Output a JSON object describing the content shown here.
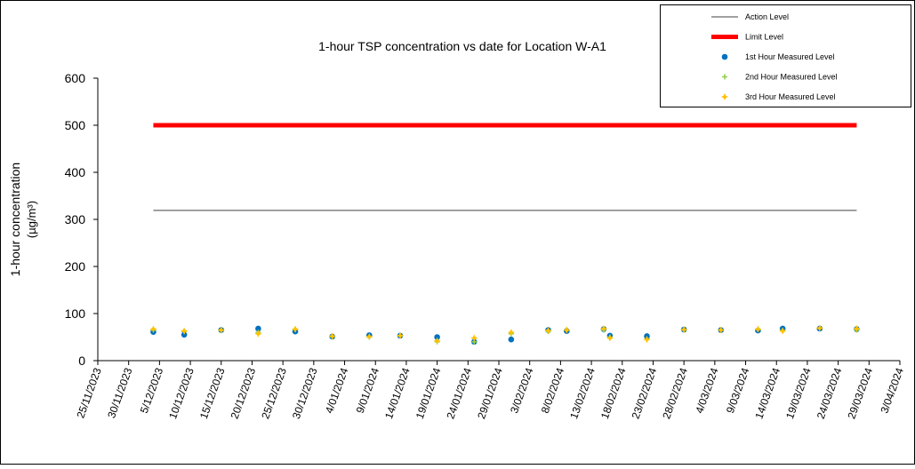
{
  "chart_data": {
    "type": "scatter",
    "title": "1-hour TSP concentration vs date for Location W-A1",
    "ylabel": [
      "1-hour concentration",
      "(µg/m³)"
    ],
    "x": [
      "4/12/2023",
      "9/12/2023",
      "15/12/2023",
      "21/12/2023",
      "27/12/2023",
      "2/01/2024",
      "8/01/2024",
      "13/01/2024",
      "19/01/2024",
      "25/01/2024",
      "31/01/2024",
      "6/02/2024",
      "9/02/2024",
      "15/02/2024",
      "16/02/2024",
      "22/02/2024",
      "28/02/2024",
      "5/03/2024",
      "11/03/2024",
      "15/03/2024",
      "21/03/2024",
      "27/03/2024"
    ],
    "series": [
      {
        "name": "Action Level",
        "kind": "line",
        "color": "#404040",
        "values": [
          319,
          319,
          319,
          319,
          319,
          319,
          319,
          319,
          319,
          319,
          319,
          319,
          319,
          319,
          319,
          319,
          319,
          319,
          319,
          319,
          319,
          319
        ]
      },
      {
        "name": "Limit Level",
        "kind": "line",
        "color": "#ff0000",
        "values": [
          500,
          500,
          500,
          500,
          500,
          500,
          500,
          500,
          500,
          500,
          500,
          500,
          500,
          500,
          500,
          500,
          500,
          500,
          500,
          500,
          500,
          500
        ]
      },
      {
        "name": "1st Hour Measured Level",
        "kind": "circle",
        "color": "#0070c0",
        "values": [
          61,
          55,
          65,
          68,
          62,
          51,
          54,
          53,
          50,
          40,
          45,
          65,
          63,
          67,
          53,
          52,
          66,
          65,
          64,
          68,
          68,
          67
        ]
      },
      {
        "name": "2nd Hour Measured Level",
        "kind": "plus",
        "color": "#92d050",
        "values": [
          65,
          62,
          64,
          60,
          66,
          51,
          50,
          53,
          40,
          40,
          57,
          62,
          65,
          65,
          50,
          46,
          65,
          65,
          66,
          64,
          69,
          65
        ]
      },
      {
        "name": "3rd Hour Measured Level",
        "kind": "star",
        "color": "#ffc000",
        "values": [
          67,
          63,
          65,
          57,
          67,
          52,
          51,
          53,
          42,
          48,
          60,
          64,
          65,
          68,
          48,
          45,
          66,
          65,
          67,
          63,
          69,
          68
        ]
      }
    ],
    "xlim": [
      "25/11/2023",
      "3/04/2024"
    ],
    "xticks": [
      "25/11/2023",
      "30/11/2023",
      "5/12/2023",
      "10/12/2023",
      "15/12/2023",
      "20/12/2023",
      "25/12/2023",
      "30/12/2023",
      "4/01/2024",
      "9/01/2024",
      "14/01/2024",
      "19/01/2024",
      "24/01/2024",
      "29/01/2024",
      "3/02/2024",
      "8/02/2024",
      "13/02/2024",
      "18/02/2024",
      "23/02/2024",
      "28/02/2024",
      "4/03/2024",
      "9/03/2024",
      "14/03/2024",
      "19/03/2024",
      "24/03/2024",
      "29/03/2024",
      "3/04/2024"
    ],
    "ylim": [
      0,
      600
    ],
    "yticks": [
      0,
      100,
      200,
      300,
      400,
      500,
      600
    ],
    "grid": false,
    "legend": "top-right"
  }
}
